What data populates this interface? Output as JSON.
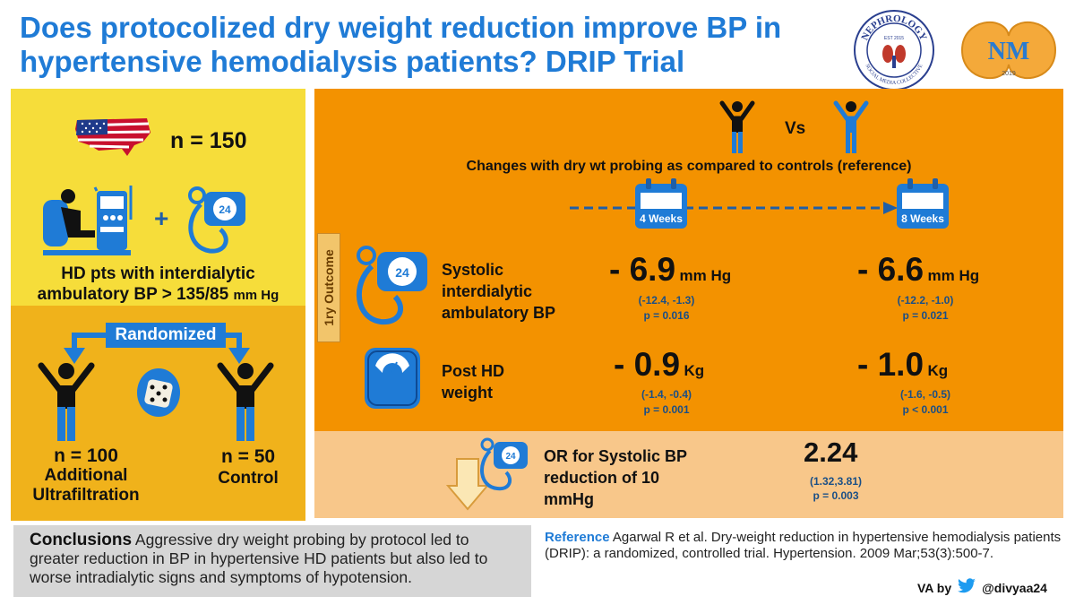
{
  "title": "Does protocolized dry weight reduction improve BP in hypertensive hemodialysis patients? DRIP Trial",
  "logos": {
    "nephrology": {
      "top": "NEPHROLOGY",
      "bottom": "SOCIAL MEDIA COLLECTIVE",
      "est": "EST 2015"
    },
    "nm": {
      "letters": "NM",
      "year": "2019"
    }
  },
  "population": {
    "n": "n = 150",
    "criteria_line1": "HD pts with interdialytic",
    "criteria_line2": "ambulatory BP > 135/85",
    "criteria_unit": "mm Hg"
  },
  "randomization": {
    "label": "Randomized",
    "arm1_n": "n = 100",
    "arm1_name_line1": "Additional",
    "arm1_name_line2": "Ultrafiltration",
    "arm2_n": "n = 50",
    "arm2_name": "Control"
  },
  "comparison": {
    "vs": "Vs",
    "subtitle": "Changes with dry wt probing as compared to controls (reference)",
    "week1": "4 Weeks",
    "week2": "8 Weeks",
    "outcome_label": "1ry Outcome"
  },
  "outcomes": {
    "sbp": {
      "label_line1": "Systolic",
      "label_line2": "interdialytic",
      "label_line3": "ambulatory BP",
      "w4_value": "- 6.9",
      "w4_unit": "mm Hg",
      "w4_ci": "(-12.4, -1.3)",
      "w4_p": "p = 0.016",
      "w8_value": "- 6.6",
      "w8_unit": "mm Hg",
      "w8_ci": "(-12.2, -1.0)",
      "w8_p": "p = 0.021"
    },
    "weight": {
      "label_line1": "Post HD",
      "label_line2": "weight",
      "w4_value": "- 0.9",
      "w4_unit": "Kg",
      "w4_ci": "(-1.4, -0.4)",
      "w4_p": "p = 0.001",
      "w8_value": "- 1.0",
      "w8_unit": "Kg",
      "w8_ci": "(-1.6, -0.5)",
      "w8_p": "p < 0.001"
    },
    "or": {
      "label_line1": "OR for Systolic BP",
      "label_line2": "reduction of 10",
      "label_line3": "mmHg",
      "value": "2.24",
      "ci": "(1.32,3.81)",
      "p": "p = 0.003"
    }
  },
  "conclusions": {
    "heading": "Conclusions",
    "text": "Aggressive dry weight probing by protocol led to greater reduction in BP in hypertensive HD patients but also led to worse intradialytic signs and symptoms of hypotension."
  },
  "reference": {
    "heading": "Reference",
    "text": "Agarwal R et al. Dry-weight reduction in hypertensive hemodialysis patients (DRIP): a randomized, controlled trial. Hypertension. 2009 Mar;53(3):500-7."
  },
  "credit": {
    "prefix": "VA by",
    "handle": "@divyaa24"
  },
  "colors": {
    "title_blue": "#1f7bd6",
    "yellow": "#f6dd3a",
    "gold": "#f0b21b",
    "orange": "#f39200",
    "light_orange": "#f8c78a",
    "grey": "#d6d6d6"
  }
}
